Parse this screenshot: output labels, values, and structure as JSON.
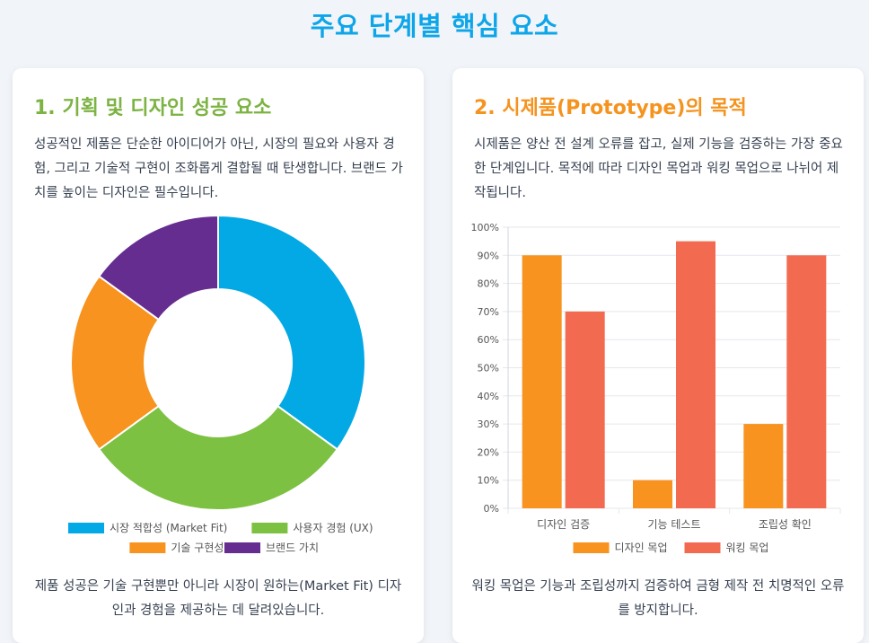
{
  "page": {
    "title": "주요 단계별 핵심 요소"
  },
  "card1": {
    "title": "1. 기획 및 디자인 성공 요소",
    "description": "성공적인 제품은 단순한 아이디어가 아닌, 시장의 필요와 사용자 경험, 그리고 기술적 구현이 조화롭게 결합될 때 탄생합니다. 브랜드 가치를 높이는 디자인은 필수입니다.",
    "note": "제품 성공은 기술 구현뿐만 아니라 시장이 원하는(Market Fit) 디자인과 경험을 제공하는 데 달려있습니다."
  },
  "card2": {
    "title": "2. 시제품(Prototype)의 목적",
    "description": "시제품은 양산 전 설계 오류를 잡고, 실제 기능을 검증하는 가장 중요한 단계입니다. 목적에 따라 디자인 목업과 워킹 목업으로 나뉘어 제작됩니다.",
    "note": "워킹 목업은 기능과 조립성까지 검증하여 금형 제작 전 치명적인 오류를 방지합니다."
  },
  "chart_data": [
    {
      "type": "pie",
      "donut": true,
      "labels": [
        "시장 적합성 (Market Fit)",
        "사용자 경험 (UX)",
        "기술 구현성",
        "브랜드 가치"
      ],
      "values": [
        35,
        30,
        20,
        15
      ],
      "colors": [
        "#03a9e4",
        "#7cc142",
        "#f7931e",
        "#662d91"
      ],
      "legend_position": "bottom"
    },
    {
      "type": "bar",
      "categories": [
        "디자인 검증",
        "기능 테스트",
        "조립성 확인"
      ],
      "series": [
        {
          "name": "디자인 목업",
          "values": [
            90,
            10,
            30
          ],
          "color": "#f7931e"
        },
        {
          "name": "워킹 목업",
          "values": [
            70,
            95,
            90
          ],
          "color": "#f26b50"
        }
      ],
      "ylim": [
        0,
        100
      ],
      "yticks": [
        "0%",
        "10%",
        "20%",
        "30%",
        "40%",
        "50%",
        "60%",
        "70%",
        "80%",
        "90%",
        "100%"
      ],
      "grid": true,
      "legend_position": "bottom"
    }
  ]
}
